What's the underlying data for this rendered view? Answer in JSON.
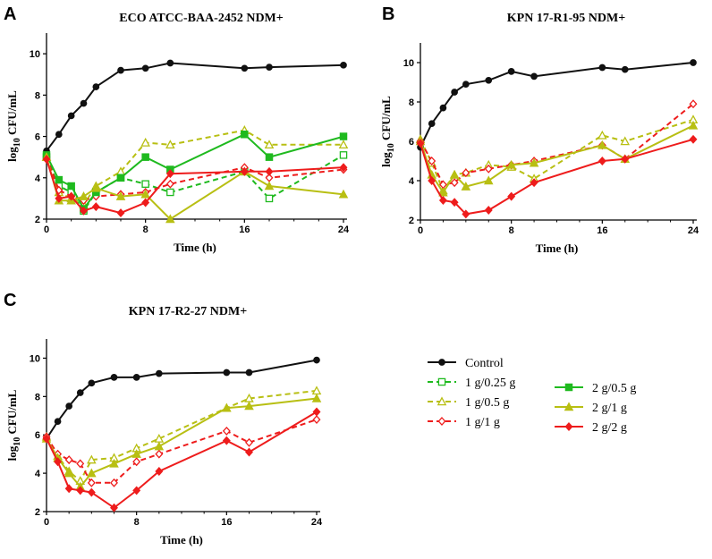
{
  "figure_labels": [
    "A",
    "B",
    "C"
  ],
  "colors": {
    "control": "#111111",
    "green": "#1fba1f",
    "olive": "#b8bf13",
    "red": "#ee1c1c"
  },
  "legend": [
    {
      "key": "control",
      "label": "Control",
      "color": "control",
      "dash": false,
      "marker": "circle"
    },
    {
      "key": "g025",
      "label": "1 g/0.25 g",
      "color": "green",
      "dash": true,
      "marker": "square-open"
    },
    {
      "key": "y05",
      "label": "1 g/0.5 g",
      "color": "olive",
      "dash": true,
      "marker": "triangle-open"
    },
    {
      "key": "r1",
      "label": "1 g/1 g",
      "color": "red",
      "dash": true,
      "marker": "diamond-open"
    },
    {
      "key": "g05",
      "label": "2 g/0.5 g",
      "color": "green",
      "dash": false,
      "marker": "square"
    },
    {
      "key": "y1",
      "label": "2 g/1 g",
      "color": "olive",
      "dash": false,
      "marker": "triangle"
    },
    {
      "key": "r2",
      "label": "2 g/2 g",
      "color": "red",
      "dash": false,
      "marker": "diamond"
    }
  ],
  "chart_data": [
    {
      "type": "line",
      "panel": "A",
      "title": "ECO   ATCC-BAA-2452   NDM+",
      "xlabel": "Time (h)",
      "ylabel_main": "log",
      "ylabel_sub": "10",
      "ylabel_tail": " CFU/mL",
      "xlim": [
        0,
        24
      ],
      "ylim": [
        2,
        11
      ],
      "xticks": [
        0,
        8,
        16,
        24
      ],
      "yticks": [
        2,
        4,
        6,
        8,
        10
      ],
      "series": [
        {
          "key": "control",
          "x": [
            0,
            1,
            2,
            3,
            4,
            6,
            8,
            10,
            16,
            18,
            24
          ],
          "y": [
            5.3,
            6.1,
            7.0,
            7.6,
            8.4,
            9.2,
            9.3,
            9.55,
            9.3,
            9.35,
            9.45
          ]
        },
        {
          "key": "g025",
          "x": [
            0,
            1,
            2,
            3,
            4,
            6,
            8,
            10,
            16,
            18,
            24
          ],
          "y": [
            5.0,
            3.6,
            3.3,
            2.4,
            3.3,
            4.0,
            3.7,
            3.3,
            4.3,
            3.0,
            5.1
          ]
        },
        {
          "key": "y05",
          "x": [
            0,
            1,
            2,
            3,
            4,
            6,
            8,
            10,
            16,
            18,
            24
          ],
          "y": [
            5.0,
            3.3,
            3.0,
            2.7,
            3.6,
            4.3,
            5.7,
            5.6,
            6.3,
            5.6,
            5.6
          ]
        },
        {
          "key": "r1",
          "x": [
            0,
            1,
            2,
            3,
            4,
            6,
            8,
            10,
            16,
            18,
            24
          ],
          "y": [
            5.0,
            3.4,
            3.1,
            2.9,
            3.1,
            3.2,
            3.3,
            3.7,
            4.5,
            4.0,
            4.4
          ]
        },
        {
          "key": "g05",
          "x": [
            0,
            1,
            2,
            3,
            4,
            6,
            8,
            10,
            16,
            18,
            24
          ],
          "y": [
            5.1,
            3.9,
            3.6,
            2.5,
            3.3,
            4.0,
            5.0,
            4.4,
            6.1,
            5.0,
            6.0
          ]
        },
        {
          "key": "y1",
          "x": [
            0,
            1,
            2,
            3,
            4,
            6,
            8,
            10,
            16,
            18,
            24
          ],
          "y": [
            5.0,
            2.9,
            2.9,
            3.1,
            3.5,
            3.1,
            3.2,
            2.0,
            4.3,
            3.6,
            3.2
          ]
        },
        {
          "key": "r2",
          "x": [
            0,
            1,
            2,
            3,
            4,
            6,
            8,
            10,
            16,
            18,
            24
          ],
          "y": [
            4.9,
            3.0,
            3.1,
            2.4,
            2.6,
            2.3,
            2.8,
            4.2,
            4.3,
            4.3,
            4.5
          ]
        }
      ]
    },
    {
      "type": "line",
      "panel": "B",
      "title": "KPN   17-R1-95   NDM+",
      "xlabel": "Time (h)",
      "ylabel_main": "log",
      "ylabel_sub": "10",
      "ylabel_tail": " CFU/mL",
      "xlim": [
        0,
        24
      ],
      "ylim": [
        2,
        11
      ],
      "xticks": [
        0,
        8,
        16,
        24
      ],
      "yticks": [
        2,
        4,
        6,
        8,
        10
      ],
      "series": [
        {
          "key": "control",
          "x": [
            0,
            1,
            2,
            3,
            4,
            6,
            8,
            10,
            16,
            18,
            24
          ],
          "y": [
            5.7,
            6.9,
            7.7,
            8.5,
            8.9,
            9.1,
            9.55,
            9.3,
            9.75,
            9.65,
            10.0
          ]
        },
        {
          "key": "y05",
          "x": [
            0,
            1,
            2,
            3,
            4,
            6,
            8,
            10,
            16,
            18,
            24
          ],
          "y": [
            6.1,
            4.9,
            3.5,
            4.3,
            4.4,
            4.8,
            4.7,
            4.1,
            6.3,
            6.0,
            7.1
          ]
        },
        {
          "key": "r1",
          "x": [
            0,
            1,
            2,
            3,
            4,
            6,
            8,
            10,
            16,
            18,
            24
          ],
          "y": [
            6.0,
            5.0,
            3.8,
            3.9,
            4.4,
            4.6,
            4.8,
            5.0,
            5.8,
            5.1,
            7.9
          ]
        },
        {
          "key": "y1",
          "x": [
            0,
            1,
            2,
            3,
            4,
            6,
            8,
            10,
            16,
            18,
            24
          ],
          "y": [
            6.0,
            4.3,
            3.4,
            4.3,
            3.7,
            4.0,
            4.8,
            4.9,
            5.8,
            5.1,
            6.8
          ]
        },
        {
          "key": "r2",
          "x": [
            0,
            1,
            2,
            3,
            4,
            6,
            8,
            10,
            16,
            18,
            24
          ],
          "y": [
            5.9,
            4.0,
            3.0,
            2.9,
            2.3,
            2.5,
            3.2,
            3.9,
            5.0,
            5.1,
            6.1
          ]
        }
      ]
    },
    {
      "type": "line",
      "panel": "C",
      "title": "KPN   17-R2-27   NDM+",
      "xlabel": "Time (h)",
      "ylabel_main": "log",
      "ylabel_sub": "10",
      "ylabel_tail": " CFU/mL",
      "xlim": [
        0,
        24
      ],
      "ylim": [
        2,
        11
      ],
      "xticks": [
        0,
        8,
        16,
        24
      ],
      "yticks": [
        2,
        4,
        6,
        8,
        10
      ],
      "series": [
        {
          "key": "control",
          "x": [
            0,
            1,
            2,
            3,
            4,
            6,
            8,
            10,
            16,
            18,
            24
          ],
          "y": [
            5.8,
            6.7,
            7.5,
            8.2,
            8.7,
            9.0,
            9.0,
            9.2,
            9.25,
            9.25,
            9.9
          ]
        },
        {
          "key": "y05",
          "x": [
            0,
            1,
            2,
            3,
            4,
            6,
            8,
            10,
            16,
            18,
            24
          ],
          "y": [
            5.9,
            4.9,
            4.1,
            3.6,
            4.7,
            4.8,
            5.3,
            5.8,
            7.4,
            7.9,
            8.3
          ]
        },
        {
          "key": "r1",
          "x": [
            0,
            1,
            2,
            3,
            4,
            6,
            8,
            10,
            16,
            18,
            24
          ],
          "y": [
            5.9,
            5.0,
            4.7,
            4.5,
            3.5,
            3.5,
            4.6,
            5.0,
            6.2,
            5.6,
            6.8
          ]
        },
        {
          "key": "y1",
          "x": [
            0,
            1,
            2,
            3,
            4,
            6,
            8,
            10,
            16,
            18,
            24
          ],
          "y": [
            5.8,
            4.8,
            4.0,
            3.3,
            4.0,
            4.5,
            5.0,
            5.4,
            7.4,
            7.5,
            7.9
          ]
        },
        {
          "key": "r2",
          "x": [
            0,
            1,
            2,
            3,
            4,
            6,
            8,
            10,
            16,
            18,
            24
          ],
          "y": [
            5.8,
            4.6,
            3.2,
            3.1,
            3.0,
            2.2,
            3.1,
            4.1,
            5.7,
            5.1,
            7.2
          ]
        }
      ]
    }
  ]
}
